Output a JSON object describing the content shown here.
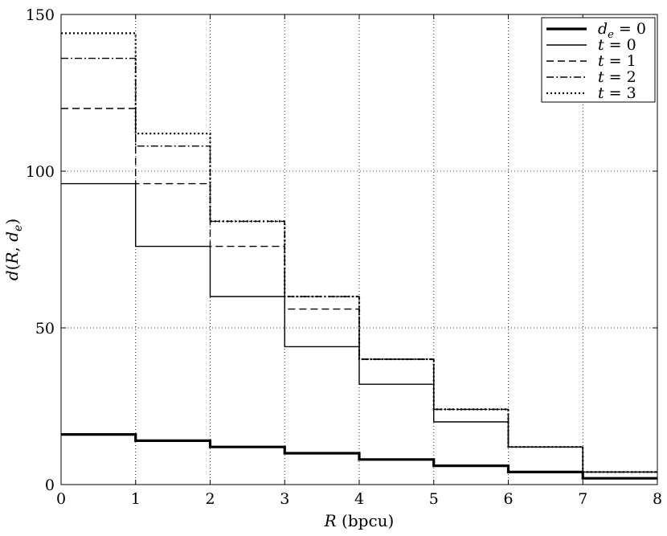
{
  "chart_data": {
    "type": "line",
    "xlabel": "R (bpcu)",
    "ylabel": "d(R, d_e)",
    "xlim": [
      0,
      8
    ],
    "ylim": [
      0,
      150
    ],
    "xticks": [
      "0",
      "1",
      "2",
      "3",
      "4",
      "5",
      "6",
      "7",
      "8"
    ],
    "yticks": [
      "0",
      "50",
      "100",
      "150"
    ],
    "grid": true,
    "legend_position": "top-right",
    "series": [
      {
        "name": "d_e = 0",
        "style": "solid-thick",
        "x": [
          0,
          1,
          2,
          3,
          4,
          5,
          6,
          7,
          8
        ],
        "y": [
          16,
          14,
          12,
          10,
          8,
          6,
          4,
          2,
          2
        ]
      },
      {
        "name": "t = 0",
        "style": "solid",
        "x": [
          0,
          1,
          2,
          3,
          4,
          5,
          6,
          7,
          8
        ],
        "y": [
          96,
          76,
          60,
          44,
          32,
          20,
          12,
          4,
          4
        ]
      },
      {
        "name": "t = 1",
        "style": "dashed",
        "x": [
          0,
          1,
          2,
          3,
          4,
          5,
          6,
          7,
          8
        ],
        "y": [
          120,
          96,
          76,
          56,
          40,
          24,
          12,
          4,
          4
        ]
      },
      {
        "name": "t = 2",
        "style": "dashdot",
        "x": [
          0,
          1,
          2,
          3,
          4,
          5,
          6,
          7,
          8
        ],
        "y": [
          136,
          108,
          84,
          60,
          40,
          24,
          12,
          4,
          4
        ]
      },
      {
        "name": "t = 3",
        "style": "dotted",
        "x": [
          0,
          1,
          2,
          3,
          4,
          5,
          6,
          7,
          8
        ],
        "y": [
          144,
          112,
          84,
          60,
          40,
          24,
          12,
          4,
          4
        ]
      }
    ],
    "legend": {
      "entries": [
        {
          "var": "d",
          "sub": "e",
          "rest": " = 0"
        },
        {
          "var": "t",
          "sub": "",
          "rest": " = 0"
        },
        {
          "var": "t",
          "sub": "",
          "rest": " = 1"
        },
        {
          "var": "t",
          "sub": "",
          "rest": " = 2"
        },
        {
          "var": "t",
          "sub": "",
          "rest": " = 3"
        }
      ]
    }
  }
}
